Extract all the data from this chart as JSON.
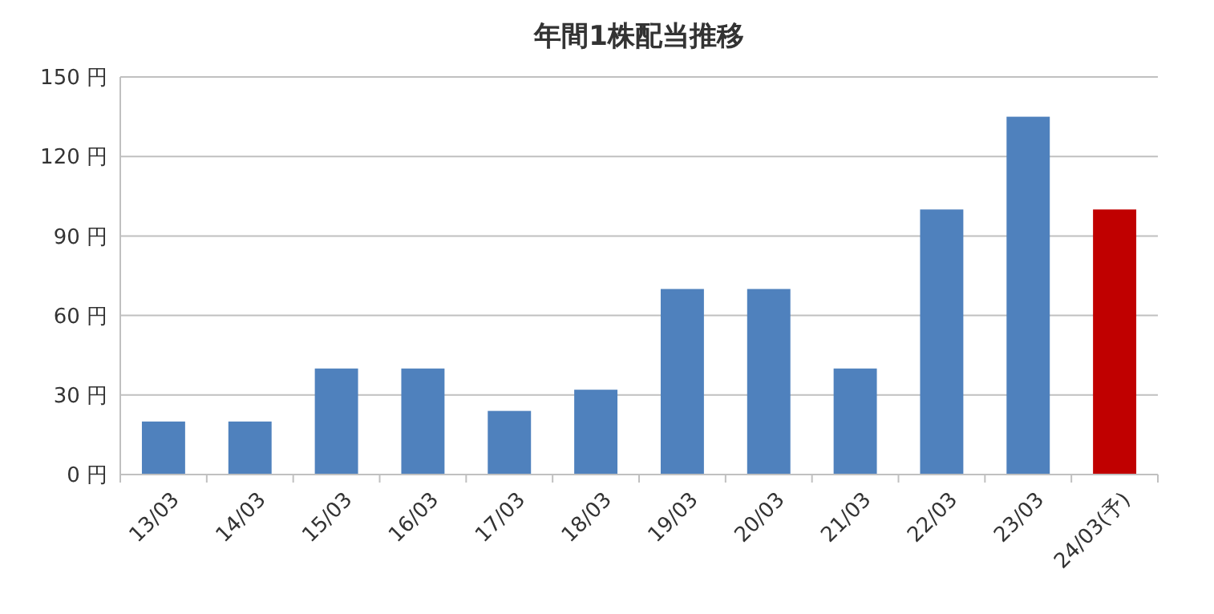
{
  "chart_data": {
    "type": "bar",
    "title": "年間1株配当推移",
    "categories": [
      "13/03",
      "14/03",
      "15/03",
      "16/03",
      "17/03",
      "18/03",
      "19/03",
      "20/03",
      "21/03",
      "22/03",
      "23/03",
      "24/03(予)"
    ],
    "values": [
      20,
      20,
      40,
      40,
      24,
      32,
      70,
      70,
      40,
      100,
      135,
      100
    ],
    "colors": [
      "#4f81bd",
      "#4f81bd",
      "#4f81bd",
      "#4f81bd",
      "#4f81bd",
      "#4f81bd",
      "#4f81bd",
      "#4f81bd",
      "#4f81bd",
      "#4f81bd",
      "#4f81bd",
      "#c00000"
    ],
    "ylim": [
      0,
      150
    ],
    "yticks": [
      {
        "value": 0,
        "label": "0 円"
      },
      {
        "value": 30,
        "label": "30 円"
      },
      {
        "value": 60,
        "label": "60 円"
      },
      {
        "value": 90,
        "label": "90 円"
      },
      {
        "value": 120,
        "label": "120 円"
      },
      {
        "value": 150,
        "label": "150 円"
      }
    ],
    "grid": "y"
  }
}
